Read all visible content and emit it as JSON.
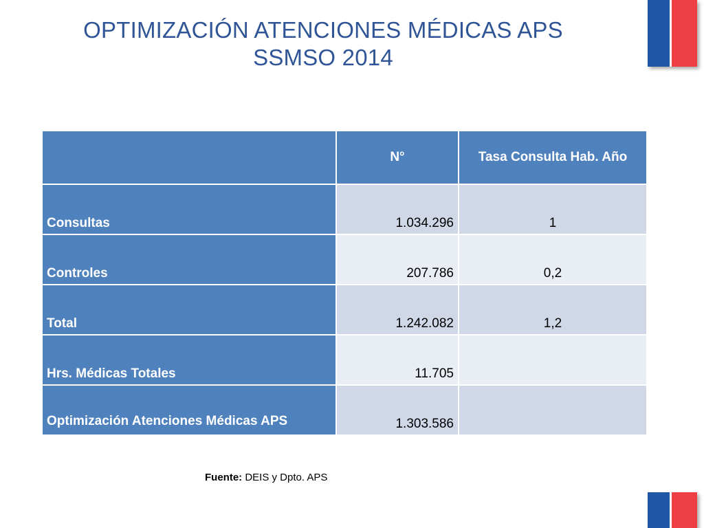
{
  "title": {
    "line1": "OPTIMIZACIÓN ATENCIONES MÉDICAS APS",
    "line2": "SSMSO 2014"
  },
  "table": {
    "headers": [
      "",
      "N°",
      "Tasa Consulta Hab. Año"
    ],
    "rows": [
      {
        "label": "Consultas",
        "n": "1.034.296",
        "tasa": "1"
      },
      {
        "label": "Controles",
        "n": "207.786",
        "tasa": "0,2"
      },
      {
        "label": "Total",
        "n": "1.242.082",
        "tasa": "1,2"
      },
      {
        "label": "Hrs. Médicas Totales",
        "n": "11.705",
        "tasa": ""
      },
      {
        "label": "Optimización Atenciones Médicas APS",
        "n": "1.303.586",
        "tasa": ""
      }
    ]
  },
  "source": {
    "label": "Fuente:",
    "text": " DEIS y Dpto. APS"
  },
  "colors": {
    "title": "#2f5597",
    "header_bg": "#4f81bd",
    "row_shade_a": "#d0d8e8",
    "row_shade_b": "#e9edf4",
    "flag_blue": "#1f56a6",
    "flag_red": "#ee3f45"
  }
}
